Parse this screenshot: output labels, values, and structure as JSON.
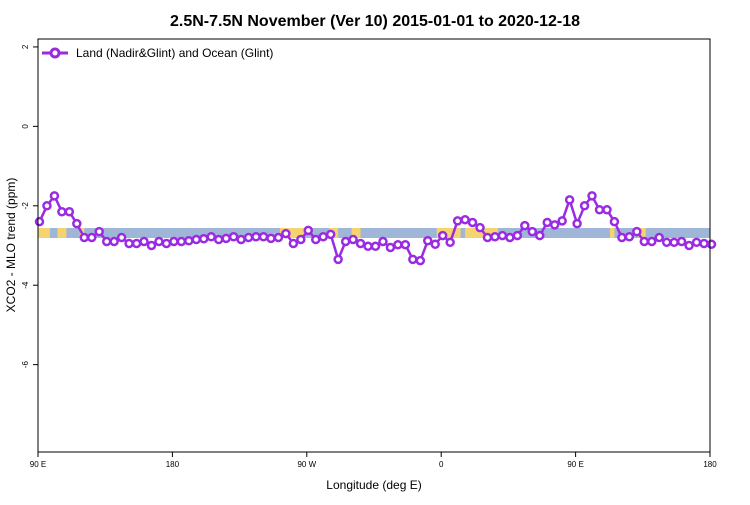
{
  "chart_data": {
    "type": "line",
    "title": "2.5N-7.5N November (Ver 10)   2015-01-01 to 2020-12-18",
    "xlabel": "Longitude (deg E)",
    "ylabel": "XCO2 - MLO trend (ppm)",
    "xlim": [
      90,
      540
    ],
    "ylim": [
      -8.2,
      2.2
    ],
    "grid": false,
    "legend_position": "top-left",
    "x_ticks": [
      {
        "value": 90,
        "label": "90 E"
      },
      {
        "value": 180,
        "label": "180"
      },
      {
        "value": 270,
        "label": "90 W"
      },
      {
        "value": 360,
        "label": "0"
      },
      {
        "value": 450,
        "label": "90 E"
      },
      {
        "value": 540,
        "label": "180"
      }
    ],
    "y_ticks": [
      {
        "value": 2,
        "label": "2"
      },
      {
        "value": 0,
        "label": "0"
      },
      {
        "value": -2,
        "label": "-2"
      },
      {
        "value": -4,
        "label": "-4"
      },
      {
        "value": -6,
        "label": "-6"
      }
    ],
    "series": [
      {
        "name": "Land (Nadir&Glint) and Ocean (Glint)",
        "color": "#9a2be2",
        "x": [
          91,
          96,
          101,
          106,
          111,
          116,
          121,
          126,
          131,
          136,
          141,
          146,
          151,
          156,
          161,
          166,
          171,
          176,
          181,
          186,
          191,
          196,
          201,
          206,
          211,
          216,
          221,
          226,
          231,
          236,
          241,
          246,
          251,
          256,
          261,
          266,
          271,
          276,
          281,
          286,
          291,
          296,
          301,
          306,
          311,
          316,
          321,
          326,
          331,
          336,
          341,
          346,
          351,
          356,
          361,
          366,
          371,
          376,
          381,
          386,
          391,
          396,
          401,
          406,
          411,
          416,
          421,
          426,
          431,
          436,
          441,
          446,
          451,
          456,
          461,
          466,
          471,
          476,
          481,
          486,
          491,
          496,
          501,
          506,
          511,
          516,
          521,
          526,
          531,
          536,
          541
        ],
        "y": [
          -2.4,
          -2.0,
          -1.75,
          -2.15,
          -2.15,
          -2.45,
          -2.8,
          -2.8,
          -2.65,
          -2.9,
          -2.9,
          -2.8,
          -2.95,
          -2.95,
          -2.9,
          -3.0,
          -2.9,
          -2.95,
          -2.9,
          -2.9,
          -2.88,
          -2.85,
          -2.83,
          -2.78,
          -2.85,
          -2.82,
          -2.78,
          -2.85,
          -2.8,
          -2.78,
          -2.78,
          -2.82,
          -2.8,
          -2.7,
          -2.95,
          -2.85,
          -2.62,
          -2.85,
          -2.78,
          -2.72,
          -3.35,
          -2.9,
          -2.85,
          -2.95,
          -3.02,
          -3.02,
          -2.9,
          -3.05,
          -2.98,
          -2.98,
          -3.35,
          -3.38,
          -2.88,
          -2.97,
          -2.75,
          -2.92,
          -2.38,
          -2.35,
          -2.42,
          -2.55,
          -2.8,
          -2.78,
          -2.75,
          -2.8,
          -2.75,
          -2.5,
          -2.65,
          -2.75,
          -2.42,
          -2.48,
          -2.38,
          -1.85,
          -2.45,
          -2.0,
          -1.75,
          -2.1,
          -2.1,
          -2.4,
          -2.8,
          -2.78,
          -2.65,
          -2.9,
          -2.9,
          -2.8,
          -2.92,
          -2.92,
          -2.9,
          -3.0,
          -2.92,
          -2.95,
          -2.97
        ]
      }
    ]
  }
}
